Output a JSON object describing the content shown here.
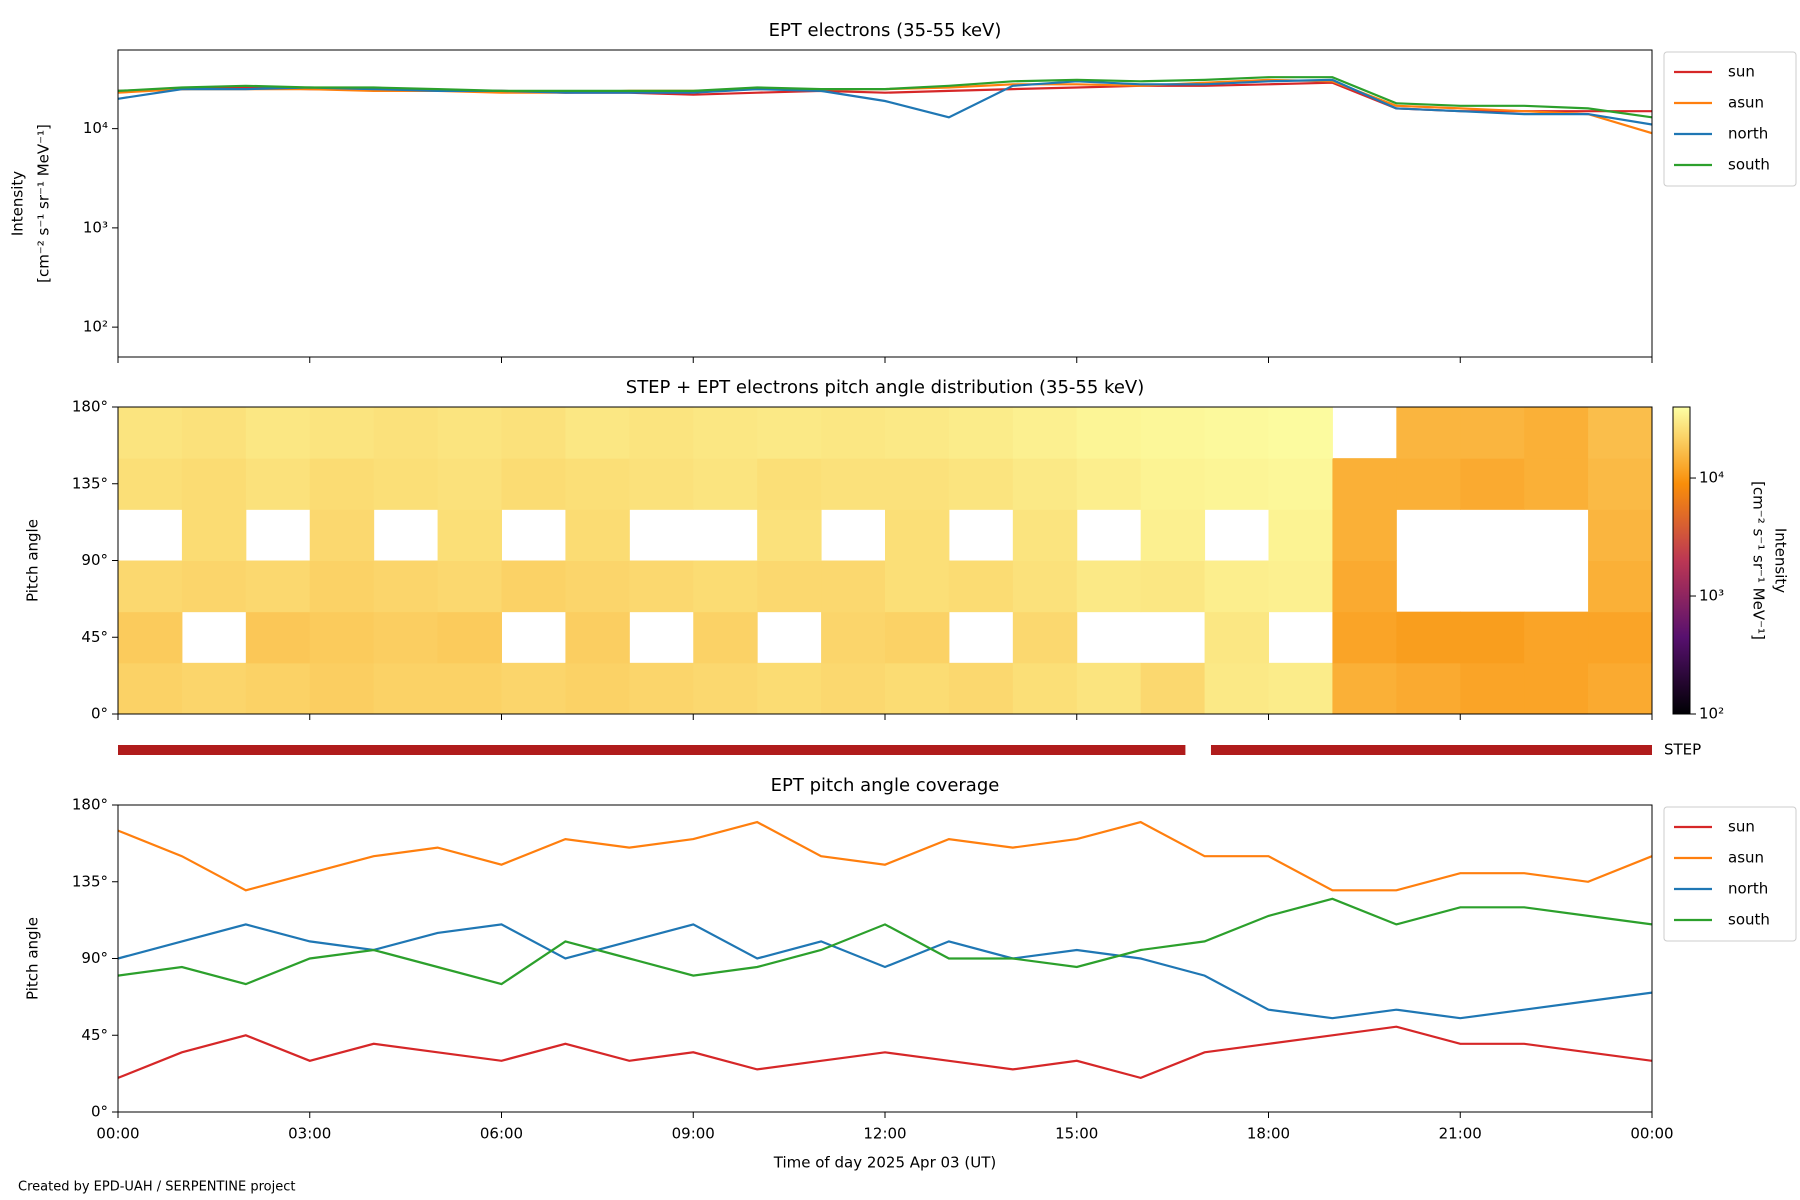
{
  "chart_data": [
    {
      "type": "line",
      "title": "EPT electrons (35-55 keV)",
      "ylabel": [
        "Intensity",
        "[cm⁻² s⁻¹ sr⁻¹ MeV⁻¹]"
      ],
      "log_y": true,
      "ylim": [
        50,
        62000
      ],
      "yticks": [
        {
          "value": 100,
          "label": "10²"
        },
        {
          "value": 1000,
          "label": "10³"
        },
        {
          "value": 10000,
          "label": "10⁴"
        }
      ],
      "xlim": [
        0,
        24
      ],
      "xticks": [
        0,
        3,
        6,
        9,
        12,
        15,
        18,
        21,
        24
      ],
      "legend": "outside-right",
      "x": [
        0,
        1,
        2,
        3,
        4,
        5,
        6,
        7,
        8,
        9,
        10,
        11,
        12,
        13,
        14,
        15,
        16,
        17,
        18,
        19,
        20,
        21,
        22,
        23,
        24
      ],
      "series": [
        {
          "name": "sun",
          "color": "#d62728",
          "values": [
            24000,
            25000,
            26000,
            25000,
            25000,
            24000,
            24000,
            23000,
            23000,
            22000,
            23000,
            24000,
            23000,
            24000,
            25000,
            26000,
            27000,
            27000,
            28000,
            29000,
            16000,
            15000,
            15000,
            15000,
            15000
          ]
        },
        {
          "name": "asun",
          "color": "#ff7f0e",
          "values": [
            23000,
            25000,
            25000,
            25000,
            24000,
            24000,
            23000,
            23000,
            24000,
            24000,
            25000,
            25000,
            25000,
            26000,
            28000,
            28000,
            27000,
            29000,
            31000,
            30000,
            17000,
            16000,
            15000,
            14000,
            9000
          ]
        },
        {
          "name": "north",
          "color": "#1f77b4",
          "values": [
            20000,
            25000,
            25000,
            26000,
            25000,
            24000,
            24000,
            23000,
            23000,
            23000,
            25000,
            24000,
            19000,
            13000,
            27000,
            30000,
            28000,
            28000,
            30000,
            31000,
            16000,
            15000,
            14000,
            14000,
            11000
          ]
        },
        {
          "name": "south",
          "color": "#2ca02c",
          "values": [
            24000,
            26000,
            27000,
            26000,
            26000,
            25000,
            24000,
            24000,
            24000,
            24000,
            26000,
            25000,
            25000,
            27000,
            30000,
            31000,
            30000,
            31000,
            33000,
            33000,
            18000,
            17000,
            17000,
            16000,
            13000
          ]
        }
      ]
    },
    {
      "type": "heatmap",
      "title": "STEP + EPT electrons pitch angle distribution (35-55 keV)",
      "ylabel": [
        "Pitch angle"
      ],
      "ylim": [
        0,
        180
      ],
      "yticks": [
        {
          "value": 0,
          "label": "0°"
        },
        {
          "value": 45,
          "label": "45°"
        },
        {
          "value": 90,
          "label": "90°"
        },
        {
          "value": 135,
          "label": "135°"
        },
        {
          "value": 180,
          "label": "180°"
        }
      ],
      "xlim": [
        0,
        24
      ],
      "xticks": [
        0,
        3,
        6,
        9,
        12,
        15,
        18,
        21,
        24
      ],
      "x_edges": [
        0,
        1,
        2,
        3,
        4,
        5,
        6,
        7,
        8,
        9,
        10,
        11,
        12,
        13,
        14,
        15,
        16,
        17,
        18,
        19,
        20,
        21,
        22,
        23,
        24
      ],
      "y_edges": [
        0,
        30,
        60,
        90,
        120,
        150,
        180
      ],
      "z": [
        [
          22000,
          23000,
          22000,
          21000,
          22000,
          22000,
          23000,
          22000,
          23000,
          24000,
          25000,
          24000,
          25000,
          24000,
          26000,
          28000,
          24000,
          30000,
          31000,
          14000,
          13000,
          12000,
          12000,
          13000
        ],
        [
          20000,
          null,
          19000,
          20000,
          21000,
          20000,
          null,
          21000,
          null,
          22000,
          null,
          23000,
          22000,
          null,
          24000,
          null,
          null,
          29000,
          null,
          12000,
          11000,
          11000,
          12000,
          12000
        ],
        [
          24000,
          23000,
          24000,
          22000,
          23000,
          24000,
          22000,
          23000,
          24000,
          25000,
          24000,
          24000,
          26000,
          25000,
          27000,
          30000,
          29000,
          32000,
          33000,
          13000,
          null,
          null,
          null,
          14000
        ],
        [
          null,
          25000,
          null,
          24000,
          null,
          26000,
          null,
          25000,
          null,
          null,
          27000,
          null,
          26000,
          null,
          28000,
          null,
          33000,
          null,
          34000,
          14000,
          null,
          null,
          null,
          15000
        ],
        [
          26000,
          25000,
          27000,
          25000,
          26000,
          27000,
          25000,
          26000,
          27000,
          28000,
          26000,
          27000,
          27000,
          28000,
          30000,
          32000,
          34000,
          35000,
          36000,
          14000,
          14000,
          13000,
          14000,
          16000
        ],
        [
          28000,
          27000,
          29000,
          28000,
          27000,
          28000,
          27000,
          29000,
          28000,
          29000,
          30000,
          29000,
          30000,
          31000,
          33000,
          35000,
          36000,
          37000,
          38000,
          null,
          15000,
          15000,
          14000,
          17000
        ]
      ],
      "colormap": "inferno",
      "clim": [
        100,
        40000
      ],
      "cticks": [
        {
          "value": 100,
          "label": "10²"
        },
        {
          "value": 1000,
          "label": "10³"
        },
        {
          "value": 10000,
          "label": "10⁴"
        }
      ],
      "colorbar_label": [
        "Intensity",
        "[cm⁻² s⁻¹ sr⁻¹ MeV⁻¹]"
      ],
      "step_coverage": {
        "label": "STEP",
        "color": "#b01c1c",
        "intervals": [
          [
            0,
            16.7
          ],
          [
            17.1,
            24
          ]
        ]
      }
    },
    {
      "type": "line",
      "title": "EPT pitch angle coverage",
      "ylabel": [
        "Pitch angle"
      ],
      "xlabel": "Time of day 2025 Apr 03 (UT)",
      "ylim": [
        0,
        180
      ],
      "yticks": [
        {
          "value": 0,
          "label": "0°"
        },
        {
          "value": 45,
          "label": "45°"
        },
        {
          "value": 90,
          "label": "90°"
        },
        {
          "value": 135,
          "label": "135°"
        },
        {
          "value": 180,
          "label": "180°"
        }
      ],
      "xlim": [
        0,
        24
      ],
      "xticks": [
        {
          "value": 0,
          "label": "00:00"
        },
        {
          "value": 3,
          "label": "03:00"
        },
        {
          "value": 6,
          "label": "06:00"
        },
        {
          "value": 9,
          "label": "09:00"
        },
        {
          "value": 12,
          "label": "12:00"
        },
        {
          "value": 15,
          "label": "15:00"
        },
        {
          "value": 18,
          "label": "18:00"
        },
        {
          "value": 21,
          "label": "21:00"
        },
        {
          "value": 24,
          "label": "00:00"
        }
      ],
      "legend": "outside-right",
      "x": [
        0,
        1,
        2,
        3,
        4,
        5,
        6,
        7,
        8,
        9,
        10,
        11,
        12,
        13,
        14,
        15,
        16,
        17,
        18,
        19,
        20,
        21,
        22,
        23,
        24
      ],
      "series": [
        {
          "name": "sun",
          "color": "#d62728",
          "values": [
            20,
            35,
            45,
            30,
            40,
            35,
            30,
            40,
            30,
            35,
            25,
            30,
            35,
            30,
            25,
            30,
            20,
            35,
            40,
            45,
            50,
            40,
            40,
            35,
            30
          ]
        },
        {
          "name": "asun",
          "color": "#ff7f0e",
          "values": [
            165,
            150,
            130,
            140,
            150,
            155,
            145,
            160,
            155,
            160,
            170,
            150,
            145,
            160,
            155,
            160,
            170,
            150,
            150,
            130,
            130,
            140,
            140,
            135,
            150
          ]
        },
        {
          "name": "north",
          "color": "#1f77b4",
          "values": [
            90,
            100,
            110,
            100,
            95,
            105,
            110,
            90,
            100,
            110,
            90,
            100,
            85,
            100,
            90,
            95,
            90,
            80,
            60,
            55,
            60,
            55,
            60,
            65,
            70
          ]
        },
        {
          "name": "south",
          "color": "#2ca02c",
          "values": [
            80,
            85,
            75,
            90,
            95,
            85,
            75,
            100,
            90,
            80,
            85,
            95,
            110,
            90,
            90,
            85,
            95,
            100,
            115,
            125,
            110,
            120,
            120,
            115,
            110
          ]
        }
      ]
    }
  ],
  "credit": "Created by EPD-UAH / SERPENTINE project"
}
